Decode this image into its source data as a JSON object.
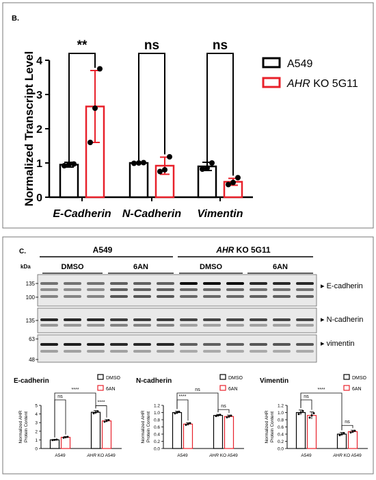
{
  "panel_b": {
    "label": "B.",
    "ylabel": "Normalized Transcript Level",
    "legend": [
      "A549",
      "AHR KO 5G11"
    ],
    "significance": [
      "**",
      "ns",
      "ns"
    ],
    "chart_data": {
      "type": "bar",
      "categories": [
        "E-Cadherin",
        "N-Cadherin",
        "Vimentin"
      ],
      "ylim": [
        0,
        4
      ],
      "yticks": [
        "0",
        "1",
        "2",
        "3",
        "4"
      ],
      "series": [
        {
          "name": "A549",
          "color": "#000000",
          "values": [
            0.95,
            1.0,
            0.9
          ],
          "errors": [
            0.07,
            0.02,
            0.12
          ],
          "points": [
            [
              0.92,
              0.96,
              0.97
            ],
            [
              0.99,
              1.0,
              1.01
            ],
            [
              0.82,
              0.85,
              1.0
            ]
          ]
        },
        {
          "name": "AHR KO 5G11",
          "color": "#e8202a",
          "values": [
            2.65,
            0.92,
            0.45
          ],
          "errors": [
            1.05,
            0.25,
            0.1
          ],
          "points": [
            [
              1.6,
              2.6,
              3.75
            ],
            [
              0.75,
              0.8,
              1.18
            ],
            [
              0.37,
              0.43,
              0.57
            ]
          ]
        }
      ]
    }
  },
  "panel_c": {
    "label": "C.",
    "kda": "kDa",
    "group_a549": "A549",
    "group_ko": "AHR KO 5G11",
    "treatments": [
      "DMSO",
      "6AN",
      "DMSO",
      "6AN"
    ],
    "markers_top": [
      "135",
      "100"
    ],
    "markers_mid": [
      "135"
    ],
    "markers_bottom": [
      "63",
      "48"
    ],
    "blot_labels": [
      "E-cadherin",
      "N-cadherin",
      "vimentin"
    ],
    "charts": [
      {
        "title": "E-cadherin",
        "ylabel": "Normalized AHR Protein Content",
        "yticks": [
          "0",
          "1",
          "2",
          "3",
          "4",
          "5"
        ],
        "ylim": [
          0,
          5
        ],
        "categories": [
          "A549",
          "AHR KO A549"
        ],
        "series": [
          {
            "name": "DMSO",
            "values": [
              1.0,
              4.2
            ],
            "errors": [
              0.05,
              0.2
            ]
          },
          {
            "name": "6AN",
            "values": [
              1.3,
              3.2
            ],
            "errors": [
              0.08,
              0.15
            ]
          }
        ],
        "sig": [
          "****",
          "ns",
          "****"
        ],
        "legend": [
          "DMSO",
          "6AN"
        ]
      },
      {
        "title": "N-cadherin",
        "ylabel": "Normalized AHR Protein Content",
        "yticks": [
          "0.0",
          "0.2",
          "0.4",
          "0.6",
          "0.8",
          "1.0",
          "1.2"
        ],
        "ylim": [
          0,
          1.2
        ],
        "categories": [
          "A549",
          "AHR KO A549"
        ],
        "series": [
          {
            "name": "DMSO",
            "values": [
              1.0,
              0.92
            ],
            "errors": [
              0.04,
              0.03
            ]
          },
          {
            "name": "6AN",
            "values": [
              0.68,
              0.89
            ],
            "errors": [
              0.04,
              0.04
            ]
          }
        ],
        "sig": [
          "ns",
          "****",
          "ns"
        ],
        "legend": [
          "DMSO",
          "6AN"
        ]
      },
      {
        "title": "Vimentin",
        "ylabel": "Normalized AHR Protein Content",
        "yticks": [
          "0.0",
          "0.2",
          "0.4",
          "0.6",
          "0.8",
          "1.0",
          "1.2"
        ],
        "ylim": [
          0,
          1.2
        ],
        "categories": [
          "A549",
          "AHR KO A549"
        ],
        "series": [
          {
            "name": "DMSO",
            "values": [
              1.0,
              0.4
            ],
            "errors": [
              0.07,
              0.05
            ]
          },
          {
            "name": "6AN",
            "values": [
              0.92,
              0.47
            ],
            "errors": [
              0.1,
              0.04
            ]
          }
        ],
        "sig": [
          "****",
          "ns",
          "ns"
        ],
        "legend": [
          "DMSO",
          "6AN"
        ]
      }
    ]
  }
}
